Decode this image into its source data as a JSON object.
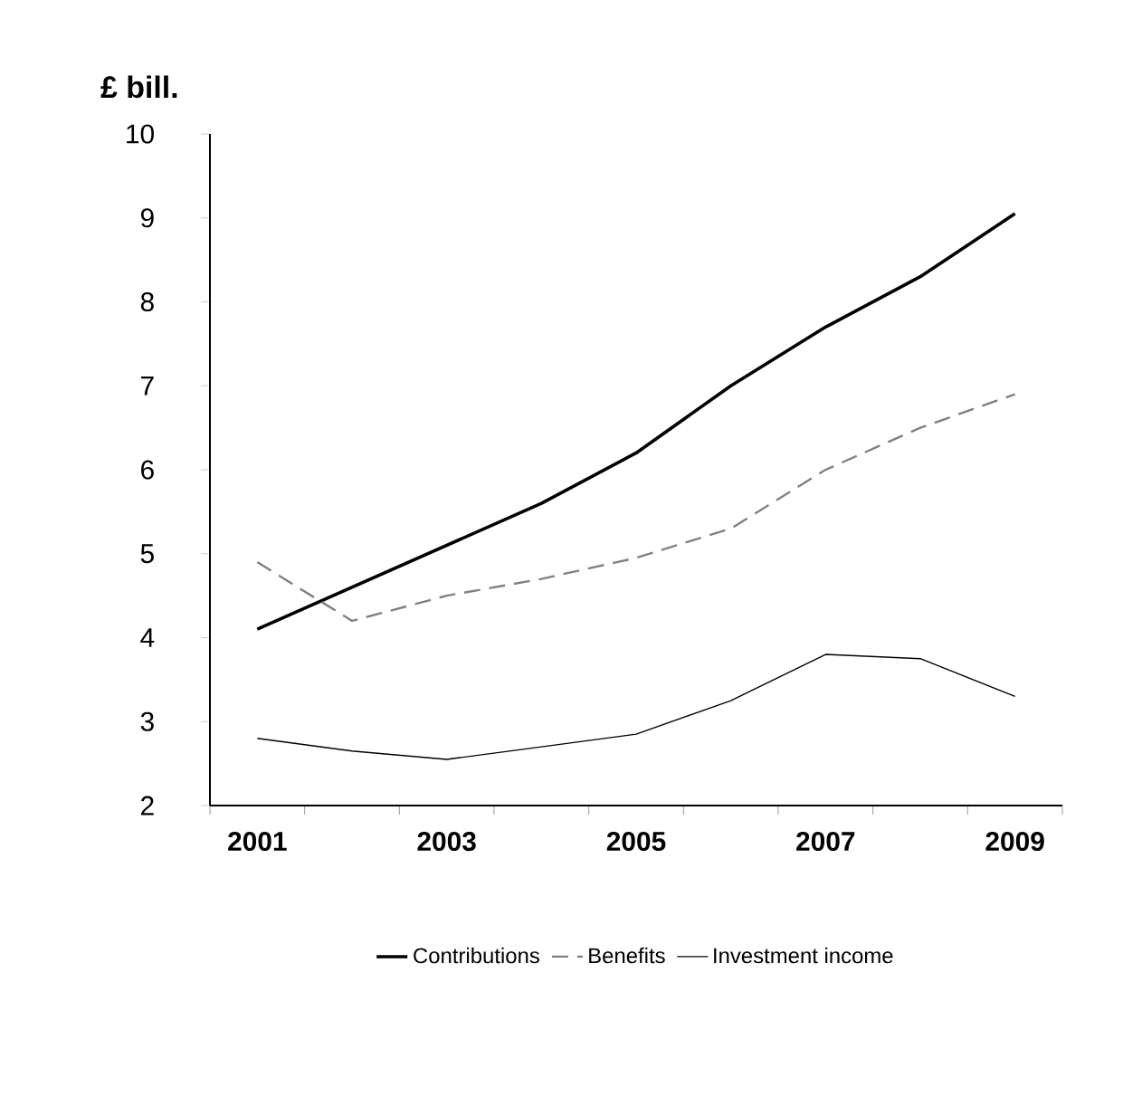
{
  "chart_data": {
    "type": "line",
    "ylabel": "£ bill.",
    "categories": [
      "2001",
      null,
      "2003",
      null,
      "2005",
      null,
      "2007",
      null,
      "2009"
    ],
    "ylim": [
      2,
      10
    ],
    "yticks": [
      2,
      3,
      4,
      5,
      6,
      7,
      8,
      9,
      10
    ],
    "legend": "bottom",
    "grid": false,
    "marker": "none",
    "series": [
      {
        "name": "Contributions",
        "color": "#000000",
        "line_style": "solid",
        "values": [
          4.1,
          4.6,
          5.1,
          5.6,
          6.2,
          7.0,
          7.7,
          8.3,
          9.05
        ]
      },
      {
        "name": "Benefits",
        "color": "#808080",
        "line_style": "dashed",
        "values": [
          4.9,
          4.2,
          4.5,
          4.7,
          4.95,
          5.3,
          6.0,
          6.5,
          6.9
        ]
      },
      {
        "name": "Investment income",
        "color": "#000000",
        "line_style": "solid",
        "values": [
          2.8,
          2.65,
          2.55,
          2.7,
          2.85,
          3.25,
          3.8,
          3.75,
          3.3
        ]
      }
    ]
  }
}
